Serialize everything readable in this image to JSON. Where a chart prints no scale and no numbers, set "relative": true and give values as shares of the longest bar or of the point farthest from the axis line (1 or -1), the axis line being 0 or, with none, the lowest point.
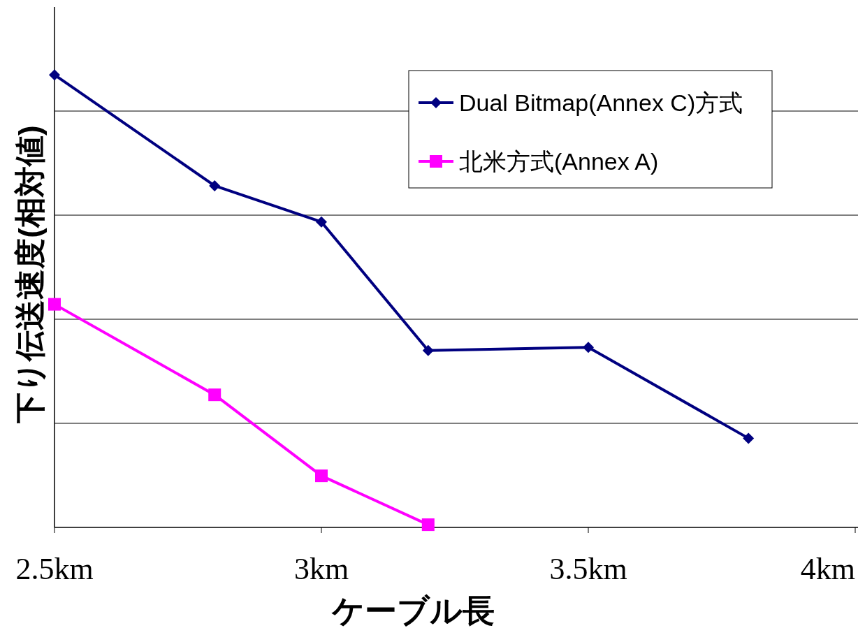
{
  "chart_data": {
    "type": "line",
    "xlabel": "ケーブル長",
    "ylabel": "下り伝送速度(相対値)",
    "relative": true,
    "grid": "y",
    "legend": "top right",
    "xlim": [
      2.5,
      4
    ],
    "xticks": [
      {
        "value": 2.5,
        "label": "2.5km"
      },
      {
        "value": 3,
        "label": "3km"
      },
      {
        "value": 3.5,
        "label": "3.5km"
      },
      {
        "value": 4,
        "label": "4km"
      }
    ],
    "series": [
      {
        "name": "Dual Bitmap(Annex C)方式",
        "color": "#000080",
        "marker": "diamond",
        "x": [
          2.5,
          2.8,
          3.0,
          3.2,
          3.5,
          3.8
        ],
        "values": [
          1.0,
          0.755,
          0.675,
          0.391,
          0.398,
          0.197
        ]
      },
      {
        "name": "北米方式(Annex A)",
        "color": "#ff00ff",
        "marker": "square",
        "x": [
          2.5,
          2.8,
          3.0,
          3.2
        ],
        "values": [
          0.493,
          0.293,
          0.114,
          0.006
        ]
      }
    ]
  }
}
